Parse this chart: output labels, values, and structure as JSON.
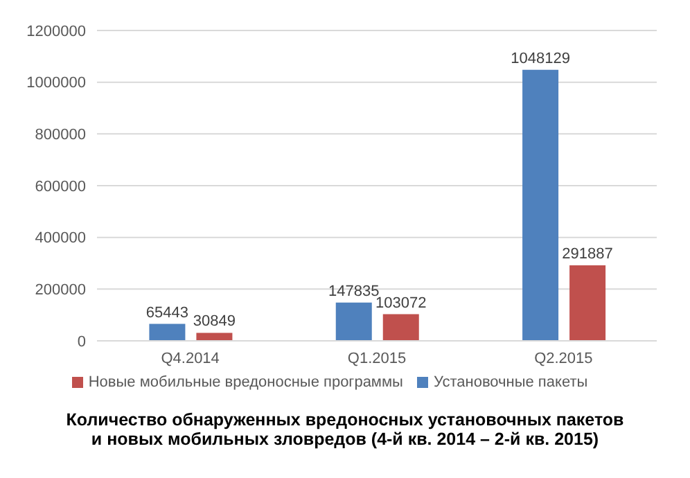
{
  "chart_data": {
    "type": "bar",
    "title": "Количество обнаруженных вредоносных установочных пакетов\nи новых мобильных зловредов (4-й кв. 2014 – 2-й кв. 2015)",
    "categories": [
      "Q4.2014",
      "Q1.2015",
      "Q2.2015"
    ],
    "series": [
      {
        "name": "Установочные пакеты",
        "color": "#4f81bd",
        "values": [
          65443,
          147835,
          1048129
        ]
      },
      {
        "name": "Новые мобильные вредоносные программы",
        "color": "#c0504d",
        "values": [
          30849,
          103072,
          291887
        ]
      }
    ],
    "ylim": [
      0,
      1200000
    ],
    "yticks": [
      0,
      200000,
      400000,
      600000,
      800000,
      1000000,
      1200000
    ],
    "grid": "y",
    "legend": "bottom",
    "data_labels": true
  }
}
